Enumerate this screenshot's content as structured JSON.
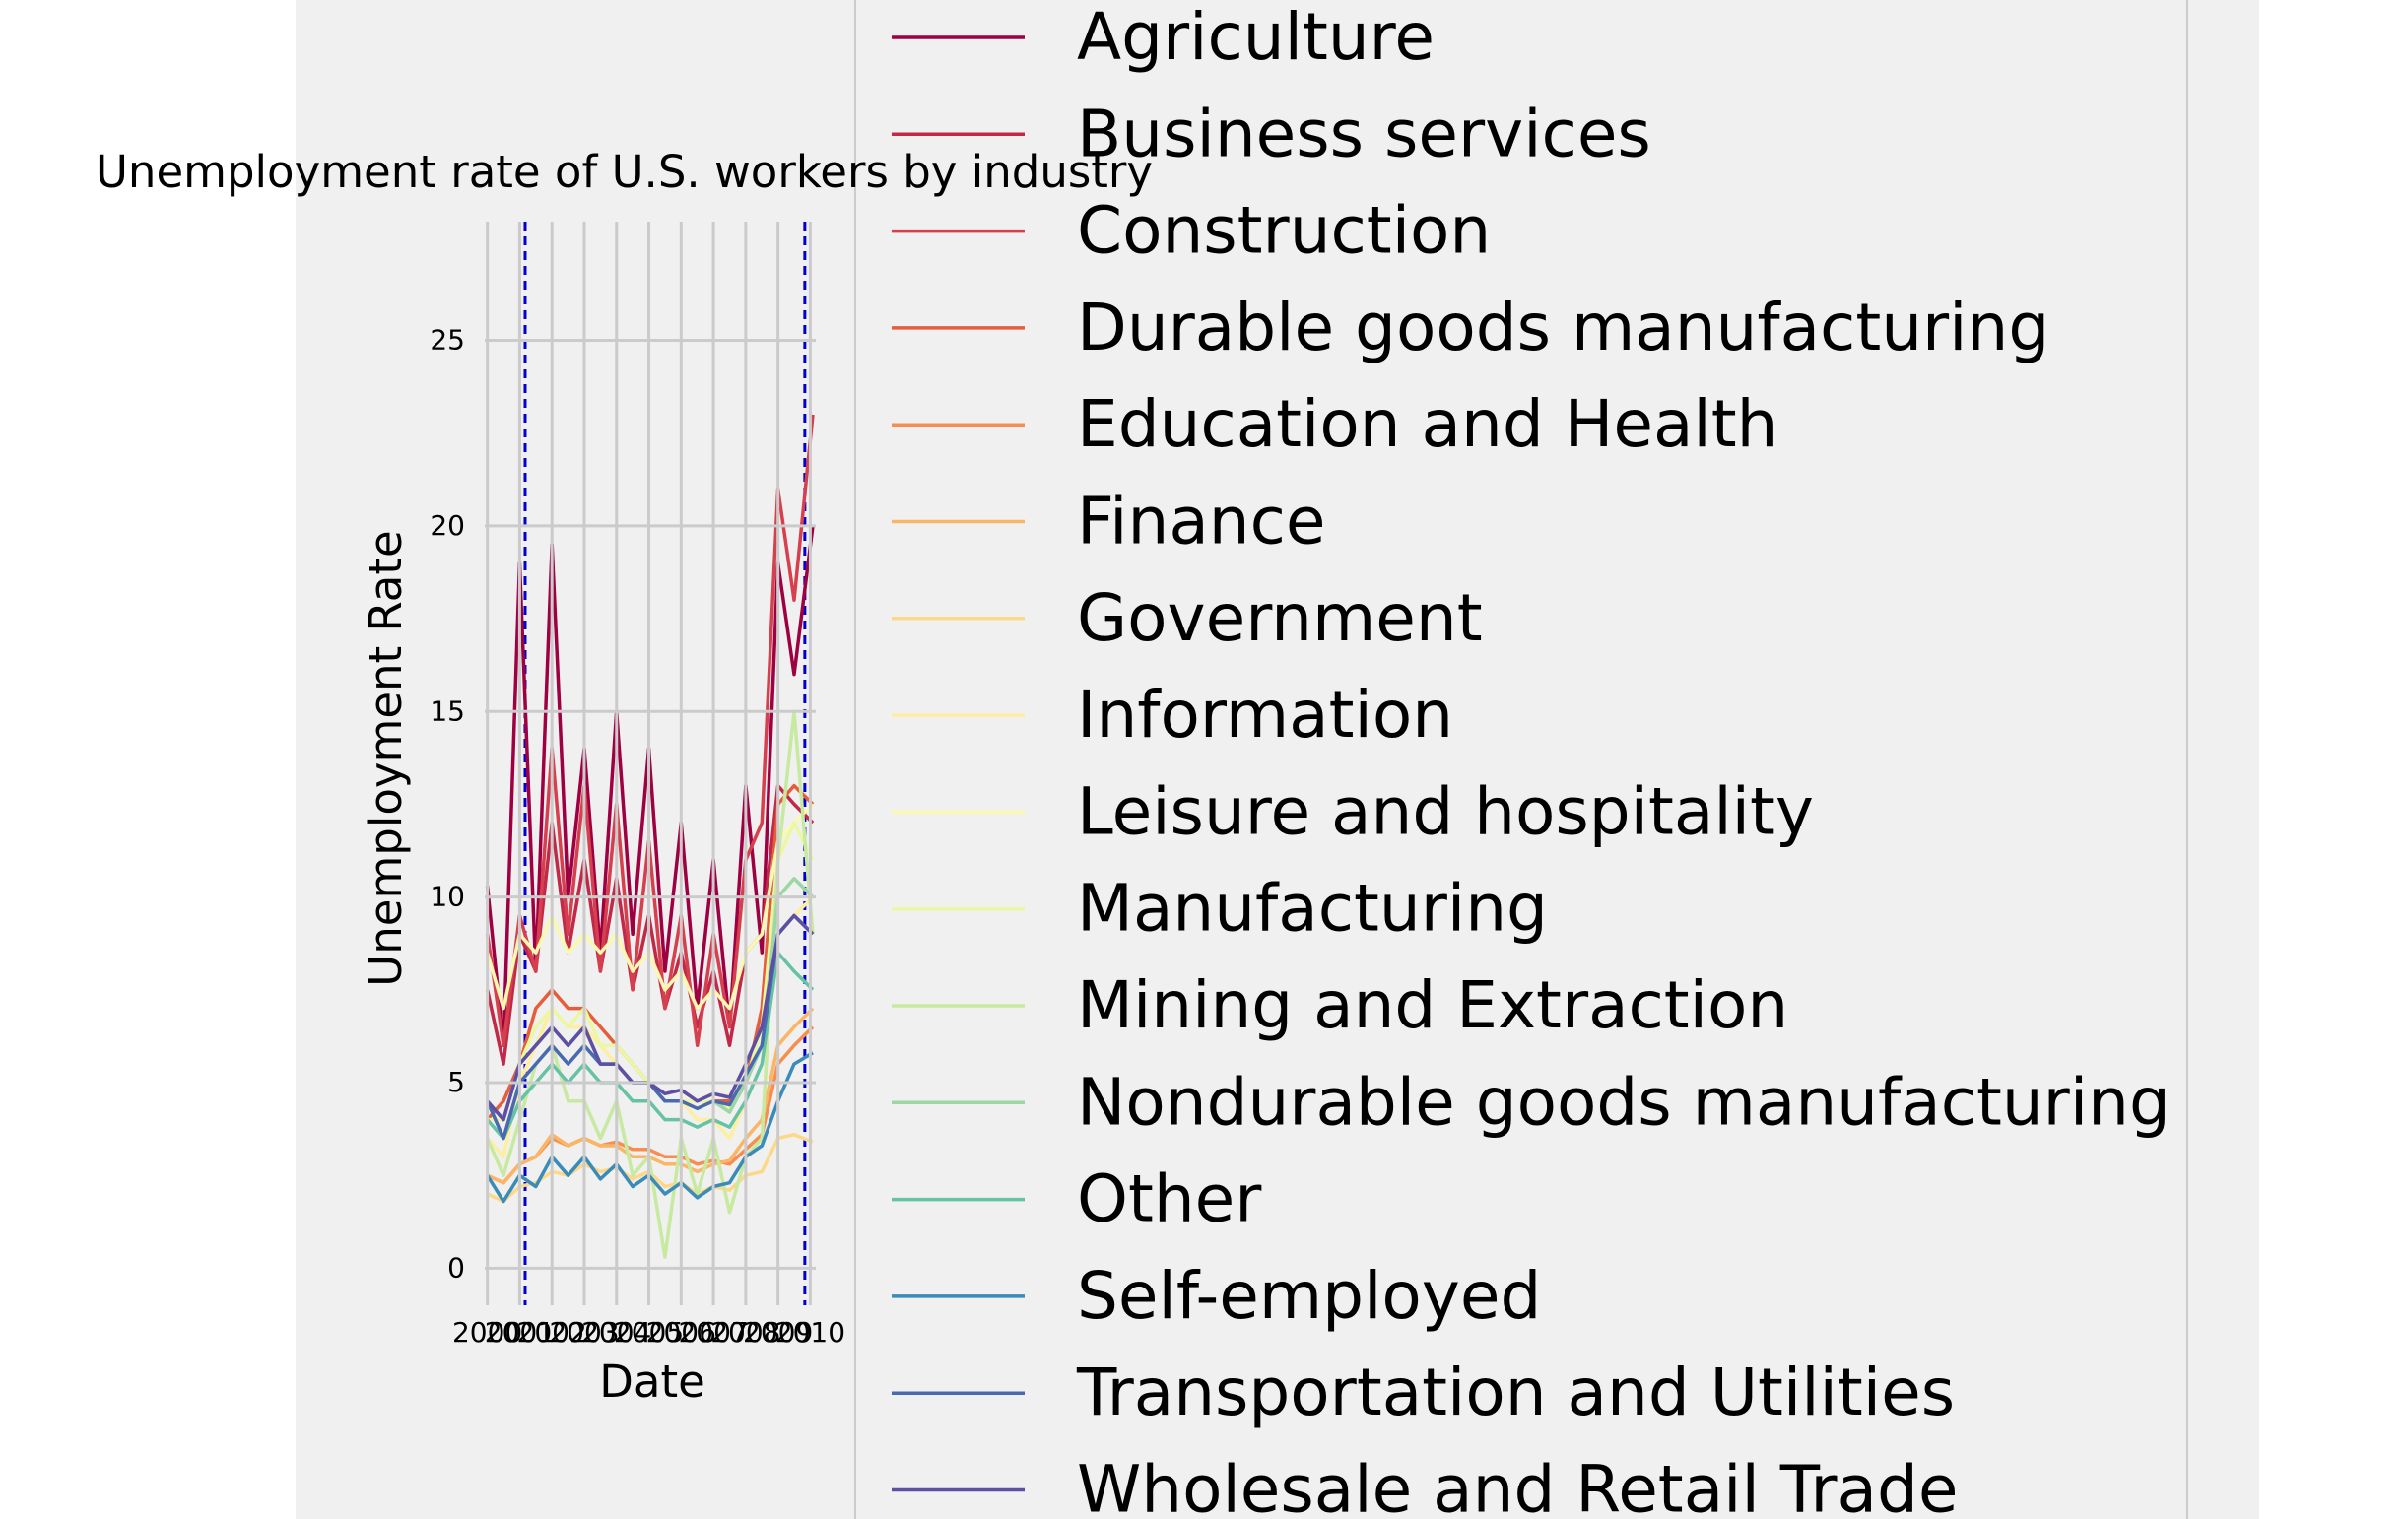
{
  "chart_data": {
    "type": "line",
    "title": "Unemployment rate of U.S. workers by industry",
    "xlabel": "Date",
    "ylabel": "Unemployment Rate",
    "x_ticks": [
      "2000",
      "2001",
      "2002",
      "2003",
      "2004",
      "2005",
      "2006",
      "2007",
      "2008",
      "2009",
      "2010"
    ],
    "x_range": [
      1999.92,
      2010.17
    ],
    "y_ticks": [
      0,
      5,
      10,
      15,
      20,
      25
    ],
    "ylim": [
      -1.0,
      28.2
    ],
    "grid": true,
    "legend_position": "right, overlapping plot",
    "vlines": [
      {
        "x": 2001.17,
        "style": "dashed",
        "color": "#0000cc"
      },
      {
        "x": 2009.83,
        "style": "dashed",
        "color": "#0000cc"
      }
    ],
    "background": "#f0f0f0",
    "sample_x": [
      2000,
      2000.5,
      2001,
      2001.5,
      2002,
      2002.5,
      2003,
      2003.5,
      2004,
      2004.5,
      2005,
      2005.5,
      2006,
      2006.5,
      2007,
      2007.5,
      2008,
      2008.5,
      2009,
      2009.5,
      2010.08
    ],
    "series": [
      {
        "name": "Agriculture",
        "color": "#9e0142",
        "values": [
          10.3,
          6.0,
          19.0,
          8.0,
          19.5,
          10.0,
          14.0,
          8.5,
          15.0,
          9.0,
          14.0,
          8.0,
          12.0,
          7.0,
          11.0,
          6.5,
          13.0,
          8.5,
          19.0,
          16.0,
          20.0
        ]
      },
      {
        "name": "Business services",
        "color": "#c02a48",
        "values": [
          7.5,
          5.5,
          9.0,
          8.0,
          12.0,
          8.5,
          11.0,
          8.0,
          10.5,
          7.5,
          9.5,
          7.0,
          8.5,
          6.5,
          8.0,
          6.0,
          8.5,
          9.0,
          13.0,
          12.5,
          12.0
        ]
      },
      {
        "name": "Construction",
        "color": "#d6404e",
        "values": [
          9.0,
          6.0,
          9.5,
          8.0,
          14.0,
          9.0,
          13.0,
          8.0,
          12.5,
          7.5,
          11.5,
          7.0,
          9.5,
          6.0,
          9.0,
          6.5,
          11.0,
          12.0,
          21.0,
          18.0,
          23.0
        ]
      },
      {
        "name": "Durable goods manufacturing",
        "color": "#e65d3b",
        "values": [
          4.0,
          4.5,
          5.5,
          7.0,
          7.5,
          7.0,
          7.0,
          6.5,
          6.0,
          5.5,
          5.0,
          4.5,
          4.5,
          4.5,
          4.5,
          4.5,
          5.0,
          7.0,
          12.5,
          13.0,
          12.5
        ]
      },
      {
        "name": "Education and Health",
        "color": "#f68e52",
        "values": [
          2.5,
          2.3,
          2.8,
          3.0,
          3.5,
          3.3,
          3.5,
          3.3,
          3.4,
          3.2,
          3.2,
          3.0,
          3.0,
          2.8,
          2.9,
          2.8,
          3.2,
          3.6,
          5.5,
          6.0,
          6.5
        ]
      },
      {
        "name": "Finance",
        "color": "#fbb566",
        "values": [
          2.5,
          2.3,
          2.8,
          3.0,
          3.6,
          3.3,
          3.5,
          3.3,
          3.3,
          3.0,
          3.0,
          2.8,
          2.8,
          2.6,
          2.8,
          2.9,
          3.5,
          4.0,
          6.0,
          6.5,
          7.0
        ]
      },
      {
        "name": "Government",
        "color": "#fdd888",
        "values": [
          2.0,
          1.8,
          2.2,
          2.3,
          2.6,
          2.5,
          2.8,
          2.6,
          2.7,
          2.4,
          2.6,
          2.2,
          2.3,
          2.0,
          2.2,
          2.1,
          2.5,
          2.6,
          3.5,
          3.6,
          3.4
        ]
      },
      {
        "name": "Information",
        "color": "#feeea0",
        "values": [
          3.5,
          3.0,
          5.0,
          6.0,
          7.0,
          6.5,
          6.5,
          6.0,
          5.5,
          5.0,
          5.0,
          4.5,
          4.5,
          4.0,
          4.0,
          3.5,
          4.5,
          5.5,
          9.0,
          9.5,
          10.0
        ]
      },
      {
        "name": "Leisure and hospitality",
        "color": "#fbf8b0",
        "values": [
          8.5,
          7.0,
          9.0,
          8.5,
          9.5,
          8.5,
          9.0,
          8.5,
          9.0,
          8.0,
          8.5,
          7.5,
          8.0,
          7.0,
          7.5,
          7.0,
          8.5,
          9.0,
          11.5,
          12.0,
          12.5
        ]
      },
      {
        "name": "Manufacturing",
        "color": "#ecf7a1",
        "values": [
          4.0,
          4.0,
          5.5,
          6.5,
          7.0,
          6.5,
          7.0,
          6.0,
          6.0,
          5.5,
          5.0,
          4.5,
          4.5,
          4.5,
          4.5,
          4.3,
          5.0,
          6.5,
          11.0,
          12.0,
          11.0
        ]
      },
      {
        "name": "Mining and Extraction",
        "color": "#c7e9a0",
        "values": [
          3.5,
          2.5,
          4.0,
          5.5,
          6.0,
          4.5,
          4.5,
          3.5,
          4.5,
          2.5,
          3.0,
          0.3,
          3.5,
          2.0,
          3.5,
          1.5,
          3.0,
          3.5,
          11.0,
          15.0,
          9.0
        ]
      },
      {
        "name": "Nondurable goods manufacturing",
        "color": "#9dd6a4",
        "values": [
          4.5,
          4.0,
          5.5,
          6.0,
          6.5,
          6.0,
          6.5,
          5.5,
          5.5,
          5.0,
          5.0,
          4.5,
          4.5,
          4.3,
          4.5,
          4.2,
          5.0,
          6.0,
          10.0,
          10.5,
          10.0
        ]
      },
      {
        "name": "Other",
        "color": "#66c2a5",
        "values": [
          4.0,
          3.5,
          4.5,
          5.0,
          5.5,
          5.0,
          5.5,
          5.0,
          5.0,
          4.5,
          4.5,
          4.0,
          4.0,
          3.8,
          4.0,
          3.8,
          4.5,
          5.5,
          8.5,
          8.0,
          7.5
        ]
      },
      {
        "name": "Self-employed",
        "color": "#3b8bb8",
        "values": [
          2.5,
          1.8,
          2.5,
          2.2,
          3.0,
          2.5,
          3.0,
          2.4,
          2.8,
          2.2,
          2.5,
          2.0,
          2.3,
          1.9,
          2.2,
          2.3,
          3.0,
          3.3,
          4.5,
          5.5,
          5.8
        ]
      },
      {
        "name": "Transportation and Utilities",
        "color": "#4a6ab0",
        "values": [
          4.5,
          3.5,
          5.0,
          5.5,
          6.0,
          5.5,
          6.0,
          5.5,
          5.5,
          5.0,
          5.0,
          4.5,
          4.5,
          4.3,
          4.5,
          4.4,
          5.2,
          6.0,
          9.0,
          9.5,
          9.0
        ]
      },
      {
        "name": "Wholesale and Retail Trade",
        "color": "#5e4fa2",
        "values": [
          4.5,
          4.0,
          5.5,
          6.0,
          6.5,
          6.0,
          6.5,
          5.5,
          5.5,
          5.0,
          5.0,
          4.7,
          4.8,
          4.5,
          4.7,
          4.6,
          5.5,
          6.5,
          9.0,
          9.5,
          9.0
        ]
      }
    ]
  }
}
